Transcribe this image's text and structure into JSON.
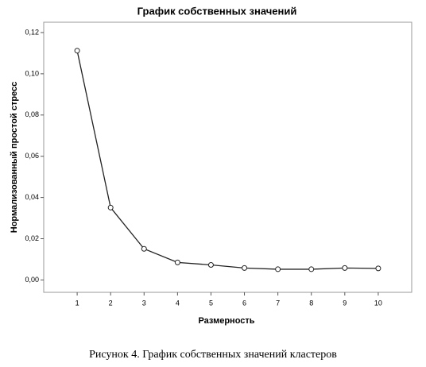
{
  "chart_data": {
    "type": "line",
    "title": "График собственных значений",
    "x_label": "Размерность",
    "y_label": "Нормализованный простой стресс",
    "caption": "Рисунок 4. График собственных значений кластеров",
    "x": [
      1,
      2,
      3,
      4,
      5,
      6,
      7,
      8,
      9,
      10
    ],
    "series": [
      {
        "color": "#222222",
        "values": [
          0.1112,
          0.0351,
          0.0151,
          0.0085,
          0.0073,
          0.0058,
          0.0052,
          0.0052,
          0.0058,
          0.0056
        ]
      }
    ],
    "xlim": [
      0,
      11
    ],
    "xticks": [
      1,
      2,
      3,
      4,
      5,
      6,
      7,
      8,
      9,
      10
    ],
    "ylim": [
      -0.006,
      0.125
    ],
    "yticks": [
      {
        "value": 0,
        "label": "0,00"
      },
      {
        "value": 0.02,
        "label": "0,02"
      },
      {
        "value": 0.04,
        "label": "0,04"
      },
      {
        "value": 0.06,
        "label": "0,06"
      },
      {
        "value": 0.08,
        "label": "0,08"
      },
      {
        "value": 0.1,
        "label": "0,10"
      },
      {
        "value": 0.12,
        "label": "0,12"
      }
    ]
  }
}
